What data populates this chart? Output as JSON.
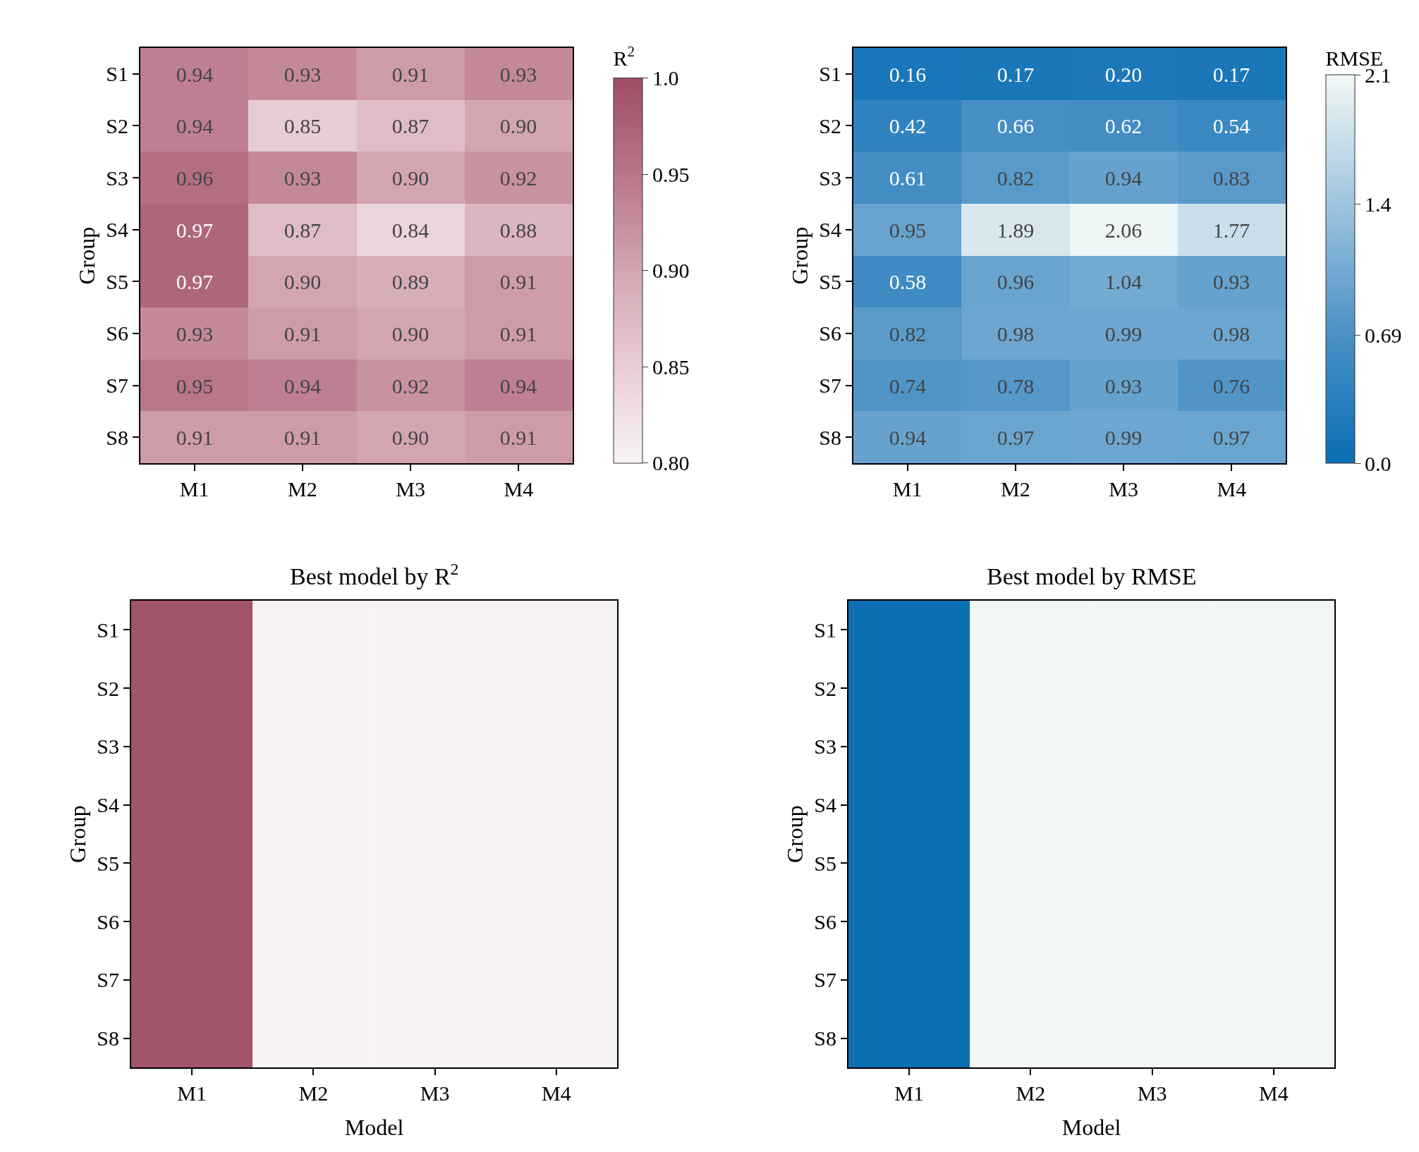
{
  "chart_data": [
    {
      "type": "heatmap",
      "categories": [
        "M1",
        "M2",
        "M3",
        "M4"
      ],
      "y_categories": [
        "S1",
        "S2",
        "S3",
        "S4",
        "S5",
        "S6",
        "S7",
        "S8"
      ],
      "ylabel": "Group",
      "clabel": "R$^{2}$",
      "cells": [
        [
          0.94,
          0.93,
          0.91,
          0.93
        ],
        [
          0.94,
          0.85,
          0.87,
          0.9
        ],
        [
          0.96,
          0.93,
          0.9,
          0.92
        ],
        [
          0.97,
          0.87,
          0.84,
          0.88
        ],
        [
          0.97,
          0.9,
          0.89,
          0.91
        ],
        [
          0.93,
          0.91,
          0.9,
          0.91
        ],
        [
          0.95,
          0.94,
          0.92,
          0.94
        ],
        [
          0.91,
          0.91,
          0.9,
          0.91
        ]
      ],
      "cell_labels": [
        [
          "0.94",
          "0.93",
          "0.91",
          "0.93"
        ],
        [
          "0.94",
          "0.85",
          "0.87",
          "0.90"
        ],
        [
          "0.96",
          "0.93",
          "0.90",
          "0.92"
        ],
        [
          "0.97",
          "0.87",
          "0.84",
          "0.88"
        ],
        [
          "0.97",
          "0.90",
          "0.89",
          "0.91"
        ],
        [
          "0.93",
          "0.91",
          "0.90",
          "0.91"
        ],
        [
          "0.95",
          "0.94",
          "0.92",
          "0.94"
        ],
        [
          "0.91",
          "0.91",
          "0.90",
          "0.91"
        ]
      ],
      "colors": [
        "#f8f3f4",
        "#e8ccd4",
        "#d3a5b1",
        "#b87689",
        "#a04d66"
      ],
      "clim": [
        0.8,
        1.0
      ],
      "cticks": [
        {
          "value": 0.8,
          "label": "0.80"
        },
        0.85,
        {
          "value": 0.9,
          "label": "0.90"
        },
        0.95,
        {
          "value": 1.0,
          "label": "1.0"
        }
      ]
    },
    {
      "type": "heatmap",
      "categories": [
        "M1",
        "M2",
        "M3",
        "M4"
      ],
      "y_categories": [
        "S1",
        "S2",
        "S3",
        "S4",
        "S5",
        "S6",
        "S7",
        "S8"
      ],
      "ylabel": "Group",
      "clabel": "RMSE",
      "cells": [
        [
          0.16,
          0.17,
          0.2,
          0.17
        ],
        [
          0.42,
          0.66,
          0.62,
          0.54
        ],
        [
          0.61,
          0.82,
          0.94,
          0.83
        ],
        [
          0.95,
          1.89,
          2.06,
          1.77
        ],
        [
          0.58,
          0.96,
          1.04,
          0.93
        ],
        [
          0.82,
          0.98,
          0.99,
          0.98
        ],
        [
          0.74,
          0.78,
          0.93,
          0.76
        ],
        [
          0.94,
          0.97,
          0.99,
          0.97
        ]
      ],
      "cell_labels": [
        [
          "0.16",
          "0.17",
          "0.20",
          "0.17"
        ],
        [
          "0.42",
          "0.66",
          "0.62",
          "0.54"
        ],
        [
          "0.61",
          "0.82",
          "0.94",
          "0.83"
        ],
        [
          "0.95",
          "1.89",
          "2.06",
          "1.77"
        ],
        [
          "0.58",
          "0.96",
          "1.04",
          "0.93"
        ],
        [
          "0.82",
          "0.98",
          "0.99",
          "0.98"
        ],
        [
          "0.74",
          "0.78",
          "0.93",
          "0.76"
        ],
        [
          "0.94",
          "0.97",
          "0.99",
          "0.97"
        ]
      ],
      "colors": [
        "#0a6eb4",
        "#4a91c6",
        "#9ec4df",
        "#f2f8f6"
      ],
      "clim": [
        0.0,
        2.1
      ],
      "cticks": [
        {
          "value": 0.0,
          "label": "0.0"
        },
        0.69,
        1.4,
        2.1
      ]
    },
    {
      "type": "other",
      "title": "Best model by R$^{2}$",
      "categories": [
        "M1",
        "M2",
        "M3",
        "M4"
      ],
      "y_categories": [
        "S1",
        "S2",
        "S3",
        "S4",
        "S5",
        "S6",
        "S7",
        "S8"
      ],
      "xlabel": "Model",
      "ylabel": "Group",
      "colors": [
        "#a25468",
        "#f8f3f3",
        "#f8f3f3",
        "#f8f3f3"
      ]
    },
    {
      "type": "other",
      "title": "Best model by RMSE",
      "categories": [
        "M1",
        "M2",
        "M3",
        "M4"
      ],
      "y_categories": [
        "S1",
        "S2",
        "S3",
        "S4",
        "S5",
        "S6",
        "S7",
        "S8"
      ],
      "xlabel": "Model",
      "ylabel": "Group",
      "colors": [
        "#0b6fb3",
        "#f1f7f4",
        "#f1f7f4",
        "#f1f7f4"
      ]
    }
  ]
}
